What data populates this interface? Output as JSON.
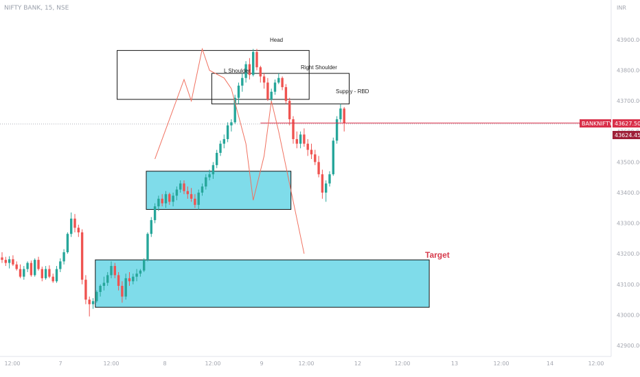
{
  "header": {
    "symbol_title": "NIFTY BANK, 15, NSE",
    "currency": "INR"
  },
  "price_tags": {
    "symbol": "BANKNIFTY",
    "last_price": "43627.50",
    "prev_price": "43624.45"
  },
  "annotations": {
    "head": "Head",
    "left_shoulder": "L Shoulder",
    "right_shoulder": "Right Shoulder",
    "supply": "Supply - RBD",
    "target": "Target"
  },
  "colors": {
    "up": "#26a69a",
    "down": "#ef5350",
    "zone_fill": "#7fdcea",
    "pattern_line": "#f0705f",
    "tag_bg": "#d9304a"
  },
  "chart_data": {
    "type": "candlestick",
    "title": "NIFTY BANK, 15, NSE",
    "y_axis": {
      "ticks": [
        "43900.00",
        "43800.00",
        "43700.00",
        "43600.00",
        "43500.00",
        "43400.00",
        "43300.00",
        "43200.00",
        "43100.00",
        "43000.00",
        "42900.00"
      ],
      "range": [
        42880,
        43950
      ]
    },
    "x_axis": {
      "ticks": [
        "12:00",
        "7",
        "12:00",
        "8",
        "12:00",
        "9",
        "12:00",
        "12",
        "12:00",
        "13",
        "12:00",
        "14",
        "12:00"
      ]
    },
    "candles": [
      [
        43188,
        43205,
        43170,
        43180
      ],
      [
        43180,
        43190,
        43160,
        43170
      ],
      [
        43170,
        43192,
        43152,
        43182
      ],
      [
        43182,
        43195,
        43160,
        43165
      ],
      [
        43165,
        43175,
        43145,
        43150
      ],
      [
        43150,
        43165,
        43120,
        43125
      ],
      [
        43125,
        43160,
        43115,
        43150
      ],
      [
        43150,
        43175,
        43140,
        43170
      ],
      [
        43170,
        43178,
        43125,
        43130
      ],
      [
        43130,
        43185,
        43125,
        43180
      ],
      [
        43180,
        43190,
        43145,
        43150
      ],
      [
        43150,
        43158,
        43110,
        43120
      ],
      [
        43120,
        43160,
        43115,
        43150
      ],
      [
        43150,
        43162,
        43120,
        43125
      ],
      [
        43125,
        43135,
        43105,
        43110
      ],
      [
        43110,
        43160,
        43105,
        43150
      ],
      [
        43150,
        43185,
        43140,
        43175
      ],
      [
        43175,
        43215,
        43165,
        43205
      ],
      [
        43205,
        43270,
        43200,
        43265
      ],
      [
        43265,
        43335,
        43255,
        43315
      ],
      [
        43315,
        43330,
        43270,
        43285
      ],
      [
        43285,
        43295,
        43255,
        43270
      ],
      [
        43270,
        43280,
        43100,
        43115
      ],
      [
        43115,
        43130,
        43035,
        43050
      ],
      [
        43050,
        43060,
        42995,
        43035
      ],
      [
        43035,
        43055,
        43020,
        43045
      ],
      [
        43045,
        43080,
        43040,
        43075
      ],
      [
        43075,
        43100,
        43060,
        43095
      ],
      [
        43095,
        43125,
        43080,
        43105
      ],
      [
        43105,
        43140,
        43095,
        43130
      ],
      [
        43130,
        43175,
        43120,
        43160
      ],
      [
        43160,
        43170,
        43120,
        43130
      ],
      [
        43130,
        43140,
        43080,
        43095
      ],
      [
        43095,
        43110,
        43040,
        43060
      ],
      [
        43060,
        43135,
        43050,
        43120
      ],
      [
        43120,
        43140,
        43095,
        43110
      ],
      [
        43110,
        43135,
        43100,
        43125
      ],
      [
        43125,
        43150,
        43110,
        43135
      ],
      [
        43135,
        43150,
        43125,
        43145
      ],
      [
        43145,
        43185,
        43140,
        43180
      ],
      [
        43180,
        43270,
        43175,
        43265
      ],
      [
        43265,
        43320,
        43255,
        43310
      ],
      [
        43310,
        43365,
        43300,
        43355
      ],
      [
        43355,
        43390,
        43340,
        43380
      ],
      [
        43380,
        43395,
        43355,
        43365
      ],
      [
        43365,
        43405,
        43350,
        43395
      ],
      [
        43395,
        43400,
        43360,
        43370
      ],
      [
        43370,
        43400,
        43355,
        43390
      ],
      [
        43390,
        43420,
        43375,
        43410
      ],
      [
        43410,
        43440,
        43400,
        43430
      ],
      [
        43430,
        43440,
        43395,
        43405
      ],
      [
        43405,
        43420,
        43380,
        43395
      ],
      [
        43395,
        43415,
        43370,
        43380
      ],
      [
        43380,
        43395,
        43350,
        43360
      ],
      [
        43360,
        43410,
        43345,
        43400
      ],
      [
        43400,
        43430,
        43390,
        43420
      ],
      [
        43420,
        43460,
        43410,
        43450
      ],
      [
        43450,
        43475,
        43440,
        43460
      ],
      [
        43460,
        43500,
        43445,
        43490
      ],
      [
        43490,
        43540,
        43480,
        43530
      ],
      [
        43530,
        43570,
        43520,
        43560
      ],
      [
        43560,
        43590,
        43545,
        43575
      ],
      [
        43575,
        43630,
        43565,
        43620
      ],
      [
        43620,
        43640,
        43600,
        43630
      ],
      [
        43630,
        43720,
        43625,
        43710
      ],
      [
        43710,
        43760,
        43690,
        43750
      ],
      [
        43750,
        43790,
        43730,
        43775
      ],
      [
        43775,
        43830,
        43760,
        43820
      ],
      [
        43820,
        43840,
        43770,
        43785
      ],
      [
        43785,
        43870,
        43780,
        43860
      ],
      [
        43860,
        43870,
        43800,
        43810
      ],
      [
        43810,
        43815,
        43760,
        43780
      ],
      [
        43780,
        43790,
        43740,
        43760
      ],
      [
        43760,
        43775,
        43700,
        43705
      ],
      [
        43705,
        43740,
        43695,
        43730
      ],
      [
        43730,
        43770,
        43720,
        43760
      ],
      [
        43760,
        43790,
        43755,
        43775
      ],
      [
        43775,
        43780,
        43735,
        43745
      ],
      [
        43745,
        43755,
        43690,
        43700
      ],
      [
        43700,
        43710,
        43620,
        43640
      ],
      [
        43640,
        43650,
        43560,
        43575
      ],
      [
        43575,
        43600,
        43545,
        43560
      ],
      [
        43560,
        43600,
        43545,
        43590
      ],
      [
        43590,
        43610,
        43550,
        43560
      ],
      [
        43560,
        43575,
        43520,
        43540
      ],
      [
        43540,
        43560,
        43510,
        43525
      ],
      [
        43525,
        43540,
        43490,
        43500
      ],
      [
        43500,
        43520,
        43450,
        43460
      ],
      [
        43460,
        43475,
        43380,
        43400
      ],
      [
        43400,
        43440,
        43370,
        43430
      ],
      [
        43430,
        43470,
        43420,
        43460
      ],
      [
        43460,
        43580,
        43455,
        43570
      ],
      [
        43570,
        43650,
        43560,
        43640
      ],
      [
        43640,
        43690,
        43630,
        43675
      ],
      [
        43675,
        43680,
        43600,
        43627.5
      ]
    ],
    "zones": [
      {
        "name": "supply-zone-upper",
        "top": 43865,
        "bottom": 43705,
        "start": 32,
        "end": 84
      },
      {
        "name": "supply-zone-rbd",
        "top": 43790,
        "bottom": 43690,
        "start": 58,
        "end": 95
      },
      {
        "name": "demand-zone-middle",
        "top": 43470,
        "bottom": 43345,
        "start": 40,
        "end": 79
      },
      {
        "name": "demand-zone-lower",
        "top": 43180,
        "bottom": 43025,
        "start": 26,
        "end": 117
      }
    ],
    "pattern_line": [
      [
        42,
        43510
      ],
      [
        50,
        43770
      ],
      [
        52,
        43700
      ],
      [
        55,
        43870
      ],
      [
        57,
        43800
      ],
      [
        61,
        43775
      ],
      [
        63,
        43740
      ],
      [
        67,
        43560
      ],
      [
        69,
        43375
      ],
      [
        72,
        43520
      ],
      [
        74,
        43700
      ],
      [
        76,
        43600
      ],
      [
        83,
        43200
      ]
    ],
    "price_line": {
      "value": 43627.5,
      "start": 71,
      "end": 116
    },
    "dotted_line": {
      "value": 43624.45
    }
  }
}
